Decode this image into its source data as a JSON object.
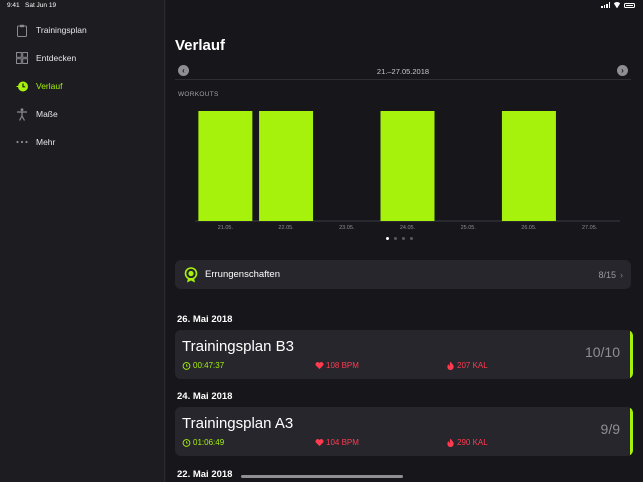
{
  "status_bar": {
    "time": "9:41",
    "date": "Sat Jun 19"
  },
  "sidebar": {
    "items": [
      {
        "label": "Trainingsplan",
        "icon": "clipboard-icon",
        "active": false
      },
      {
        "label": "Entdecken",
        "icon": "grid-icon",
        "active": false
      },
      {
        "label": "Verlauf",
        "icon": "history-clock-icon",
        "active": true
      },
      {
        "label": "Maße",
        "icon": "body-figure-icon",
        "active": false
      },
      {
        "label": "Mehr",
        "icon": "more-dots-icon",
        "active": false
      }
    ]
  },
  "main": {
    "title": "Verlauf",
    "week_range": "21.–27.05.2018",
    "chart_label": "WORKOUTS",
    "page_dots": {
      "count": 4,
      "active": 0
    },
    "achievements": {
      "label": "Errungenschaften",
      "count": "8/15"
    },
    "sections": [
      {
        "date": "26. Mai 2018",
        "workout": {
          "name": "Trainingsplan B3",
          "score": "10/10",
          "duration": "00:47:37",
          "bpm": "108 BPM",
          "kal": "207 KAL"
        }
      },
      {
        "date": "24. Mai 2018",
        "workout": {
          "name": "Trainingsplan A3",
          "score": "9/9",
          "duration": "01:06:49",
          "bpm": "104 BPM",
          "kal": "290 KAL"
        }
      },
      {
        "date": "22. Mai 2018"
      }
    ]
  },
  "colors": {
    "accent": "#a6f20c",
    "heart": "#ff3b50",
    "background": "#17171b",
    "card": "#26262c"
  },
  "chart_data": {
    "type": "bar",
    "title": "WORKOUTS",
    "categories": [
      "21.05.",
      "22.05.",
      "23.05.",
      "24.05.",
      "25.05.",
      "26.05.",
      "27.05."
    ],
    "values": [
      1,
      1,
      0,
      1,
      0,
      1,
      0
    ],
    "ylim": [
      0,
      1
    ],
    "grid": false,
    "color": "#a6f20c"
  }
}
